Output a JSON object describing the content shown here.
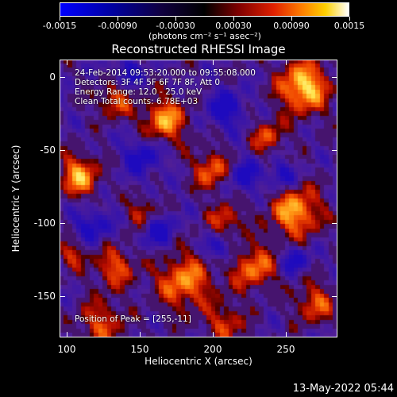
{
  "colorbar": {
    "tick_labels": [
      "-0.0015",
      "-0.00090",
      "-0.00030",
      "0.00030",
      "0.00090",
      "0.0015"
    ],
    "unit_label": "(photons cm⁻² s⁻¹ asec⁻²)",
    "range": [
      -0.0015,
      0.0015
    ]
  },
  "plot": {
    "title": "Reconstructed RHESSI Image",
    "xlabel": "Heliocentric X (arcsec)",
    "ylabel": "Heliocentric Y (arcsec)",
    "x_ticks": [
      "100",
      "150",
      "200",
      "250"
    ],
    "y_ticks": [
      "0",
      "-50",
      "-100",
      "-150"
    ],
    "xlim": [
      95,
      285
    ],
    "ylim": [
      -180,
      10
    ]
  },
  "info": {
    "time_range": "24-Feb-2014 09:53:20.000 to 09:55:08.000",
    "detectors": "Detectors: 3F 4F 5F 6F 7F 8F, Att 0",
    "energy": "Energy Range: 12.0 - 25.0 keV",
    "clean": "Clean     Total counts: 6.78E+03",
    "peak": "Position of Peak = [255,-11]"
  },
  "footer": {
    "date": "13-May-2022 05:44"
  }
}
